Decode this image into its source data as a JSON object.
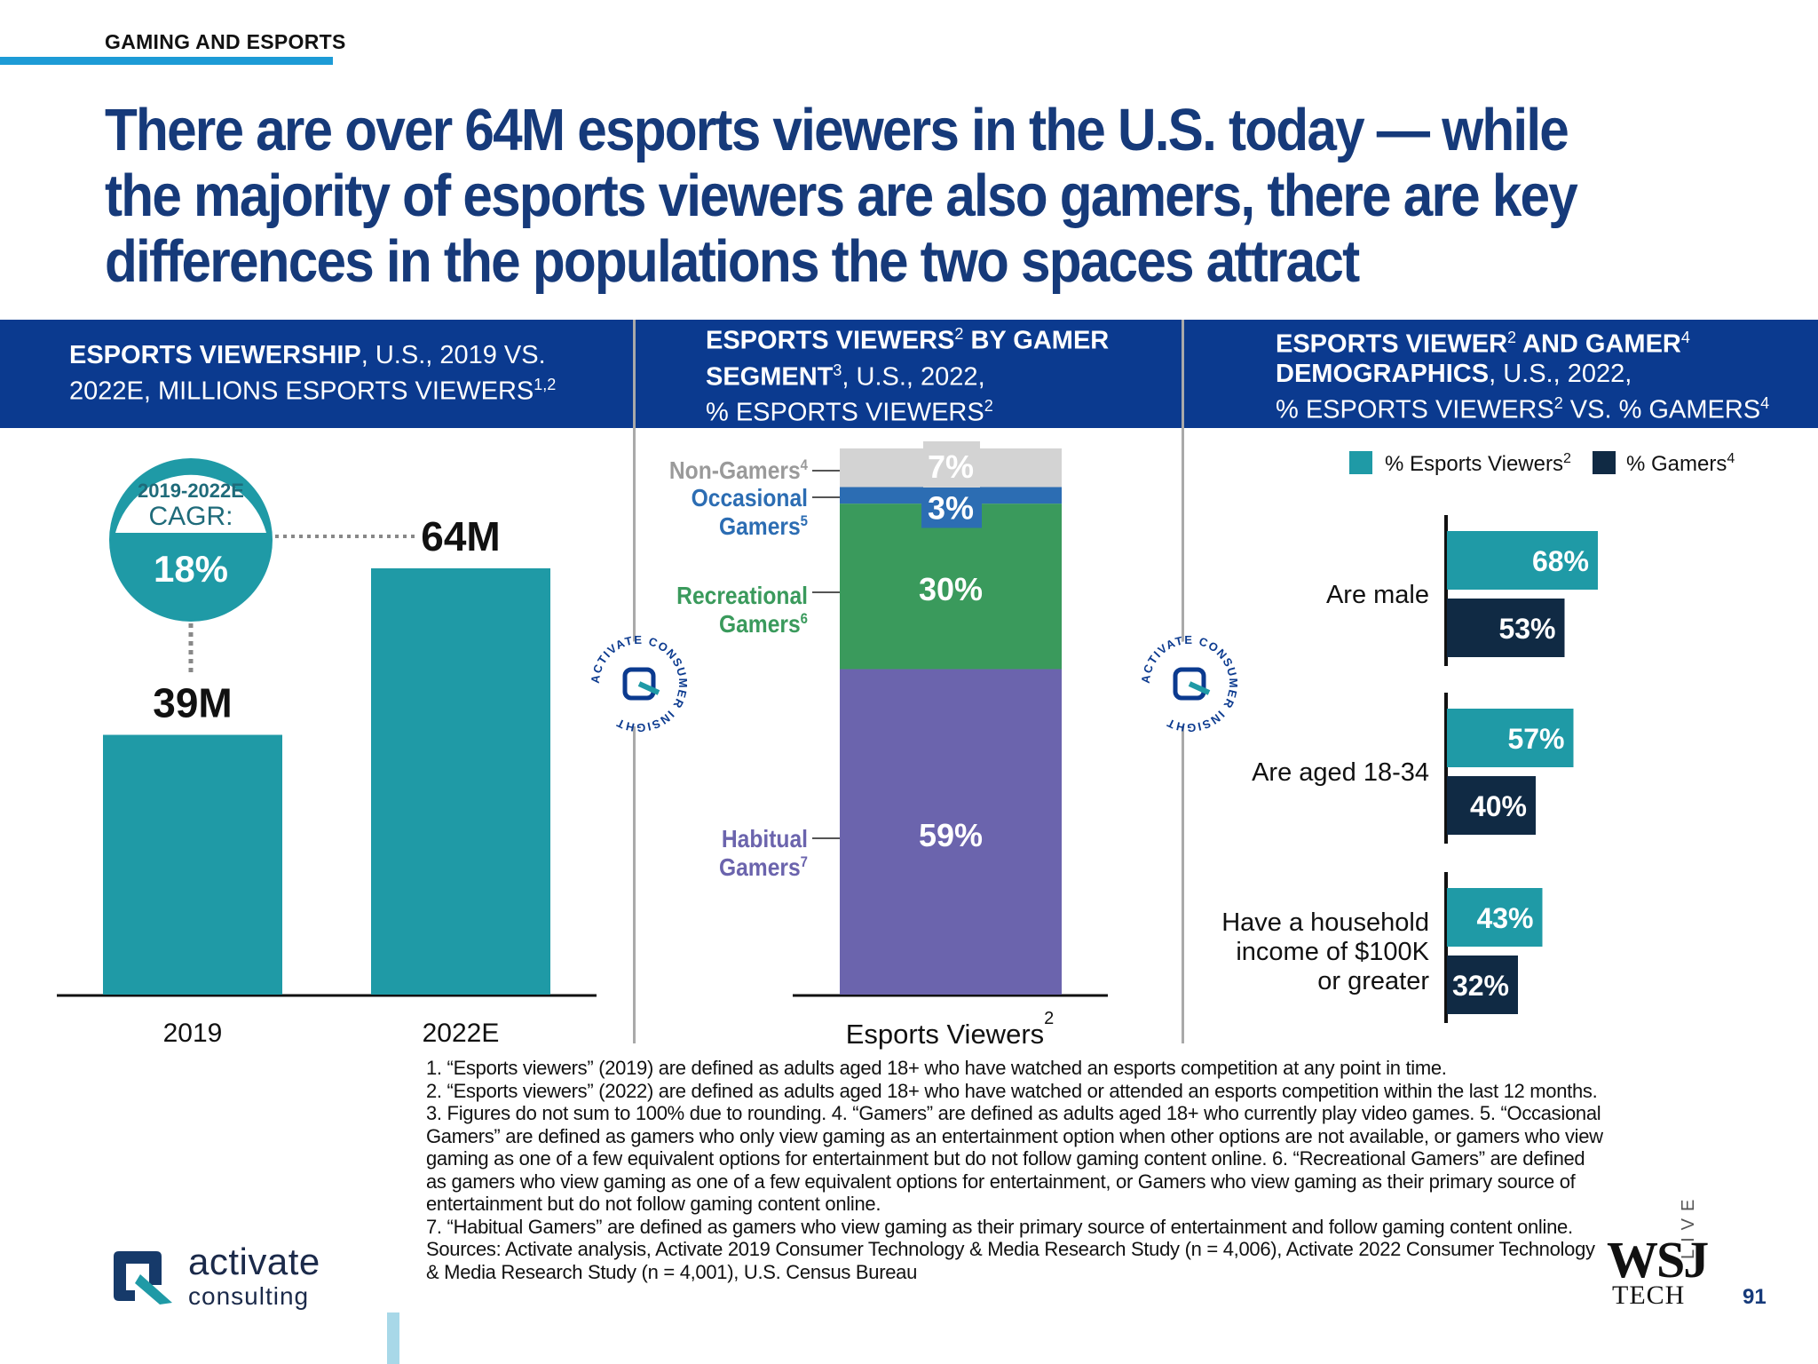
{
  "section_label": "GAMING AND ESPORTS",
  "headline": "There are over 64M esports viewers in the U.S. today — while the majority of esports viewers are also gamers, there are key differences in the populations the two spaces attract",
  "panels": {
    "left": {
      "title_bold": "ESPORTS VIEWERSHIP",
      "title_rest": ", U.S., 2019 VS. 2022E, MILLIONS ESPORTS VIEWERS",
      "title_sup": "1,2"
    },
    "middle": {
      "title_bold": "ESPORTS VIEWERS",
      "sup1": "2",
      "title_bold2": " BY GAMER SEGMENT",
      "sup2": "3",
      "title_rest": ", U.S., 2022,",
      "line3": "% ESPORTS VIEWERS",
      "sup3": "2"
    },
    "right": {
      "title_bold": "ESPORTS VIEWER",
      "sup1": "2",
      "title_bold2": " AND GAMER",
      "sup2": "4",
      "title_bold3": "DEMOGRAPHICS",
      "title_rest": ", U.S., 2022,",
      "line3": "% ESPORTS VIEWERS",
      "sup3": "2",
      "line3b": " VS. % GAMERS",
      "sup4": "4"
    }
  },
  "cagr": {
    "top": "2019-2022E",
    "label": "CAGR:",
    "value": "18%"
  },
  "colors": {
    "teal": "#1f9aa6",
    "navy": "#102a44",
    "green": "#3a9a5c",
    "purple": "#6b64ad",
    "blue": "#2c6db3",
    "gray": "#d3d3d3",
    "header": "#0b3a8f"
  },
  "seal": {
    "text": "ACTIVATE CONSUMER INSIGHT"
  },
  "chart_data": [
    {
      "type": "bar",
      "categories": [
        "2019",
        "2022E"
      ],
      "values": [
        39,
        64
      ],
      "data_labels": [
        "39M",
        "64M"
      ],
      "ylim": [
        0,
        64
      ]
    },
    {
      "type": "bar",
      "stacked": true,
      "xlabel": "Esports Viewers",
      "xlabel_sup": "2",
      "series": [
        {
          "name": "Habitual Gamers",
          "sup": "7",
          "value": 59,
          "label": "59%",
          "color": "#6b64ad"
        },
        {
          "name": "Recreational Gamers",
          "sup": "6",
          "value": 30,
          "label": "30%",
          "color": "#3a9a5c"
        },
        {
          "name": "Occasional Gamers",
          "sup": "5",
          "value": 3,
          "label": "3%",
          "color": "#2c6db3"
        },
        {
          "name": "Non-Gamers",
          "sup": "4",
          "value": 7,
          "label": "7%",
          "color": "#d3d3d3"
        }
      ]
    },
    {
      "type": "bar",
      "orientation": "horizontal",
      "legend": [
        {
          "name": "% Esports Viewers",
          "sup": "2",
          "color": "#1f9aa6"
        },
        {
          "name": "% Gamers",
          "sup": "4",
          "color": "#102a44"
        }
      ],
      "categories": [
        [
          "Are male"
        ],
        [
          "Are aged 18-34"
        ],
        [
          "Have a household",
          "income of $100K",
          "or greater"
        ]
      ],
      "series": [
        {
          "name": "% Esports Viewers",
          "values": [
            68,
            57,
            43
          ],
          "labels": [
            "68%",
            "57%",
            "43%"
          ]
        },
        {
          "name": "% Gamers",
          "values": [
            53,
            40,
            32
          ],
          "labels": [
            "53%",
            "40%",
            "32%"
          ]
        }
      ]
    }
  ],
  "footnotes": [
    "1. “Esports viewers” (2019) are defined as adults aged 18+ who have watched an esports competition at any point in time.",
    "2. “Esports viewers” (2022) are defined as adults aged 18+ who have watched or attended an esports competition within the last 12 months.  3. Figures do not sum to 100% due to rounding.  4. “Gamers” are defined as adults aged 18+ who currently play video games.  5. “Occasional Gamers” are defined as gamers who only view gaming as an entertainment option when other options are not available, or gamers who view gaming as one of a few equivalent options for entertainment but do not follow gaming content online.  6. “Recreational Gamers” are defined as gamers who view gaming as one of a few equivalent options for entertainment, or Gamers who view gaming as their primary source of entertainment but do not follow gaming content online.",
    "7. “Habitual Gamers” are defined as gamers who view gaming as their primary source of entertainment and follow gaming content online.",
    "Sources: Activate analysis, Activate 2019 Consumer Technology & Media Research Study (n = 4,006), Activate 2022 Consumer Technology & Media Research Study (n = 4,001), U.S. Census Bureau"
  ],
  "logo": {
    "name": "activate",
    "sub": "consulting"
  },
  "wsj": {
    "top": "WSJ",
    "bottom": "TECH",
    "side": "LIVE"
  },
  "page_number": "91"
}
